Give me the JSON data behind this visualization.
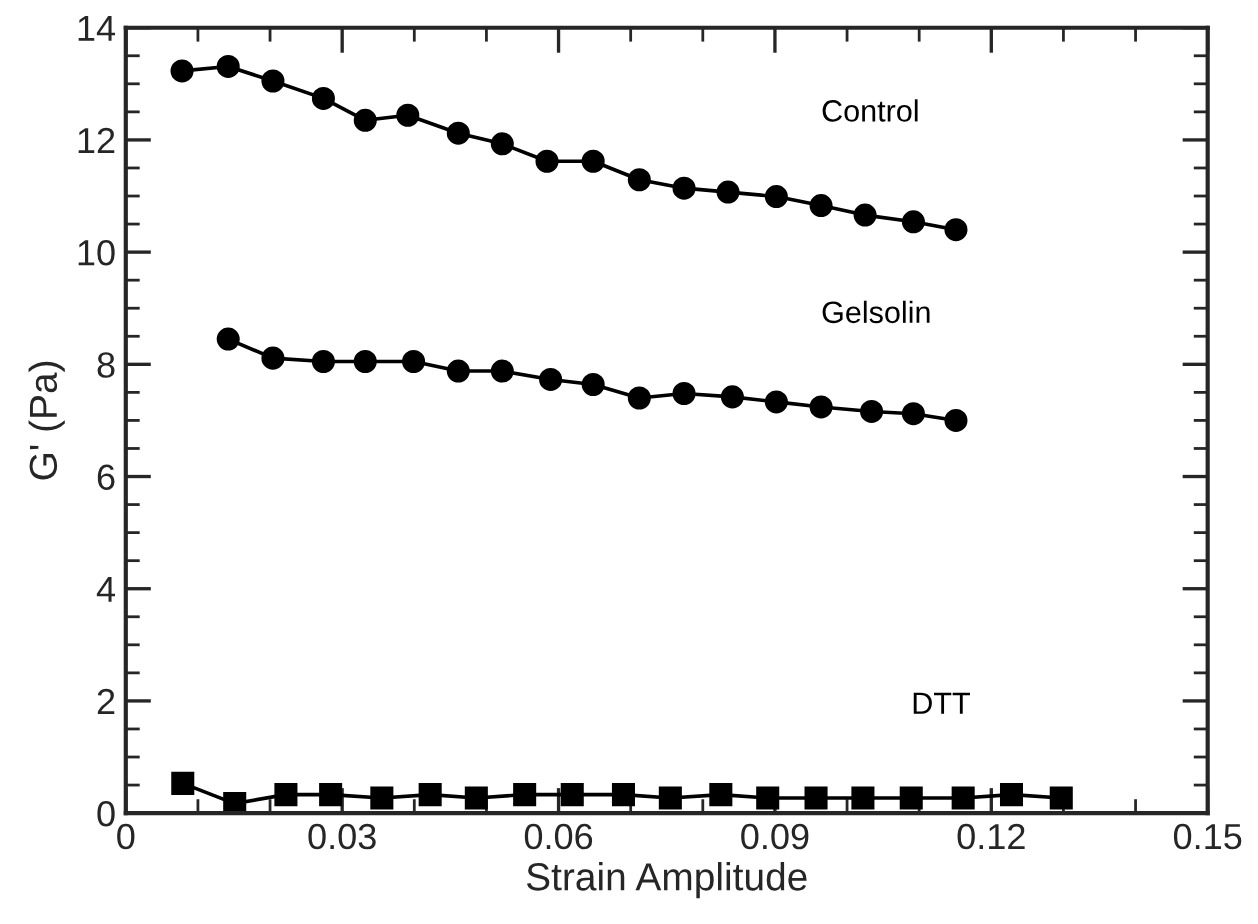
{
  "chart_data": {
    "type": "line",
    "xlabel": "Strain Amplitude",
    "ylabel": "G' (Pa)",
    "xlim": [
      0,
      0.15
    ],
    "xticks": [
      0,
      0.03,
      0.06,
      0.09,
      0.12,
      0.15
    ],
    "ylim": [
      0,
      14
    ],
    "yticks": [
      0,
      2,
      4,
      6,
      8,
      10,
      12,
      14
    ],
    "grid": false,
    "legend": false,
    "line_style": "solid",
    "series": [
      {
        "name": "Control",
        "color": "#000000",
        "marker": "circle",
        "x": [
          0.0078,
          0.0142,
          0.0204,
          0.0274,
          0.0332,
          0.0391,
          0.0461,
          0.0522,
          0.0584,
          0.0648,
          0.0712,
          0.0774,
          0.0835,
          0.0902,
          0.0964,
          0.1025,
          0.1092,
          0.1151
        ],
        "values": [
          13.23,
          13.31,
          13.05,
          12.74,
          12.35,
          12.44,
          12.12,
          11.93,
          11.62,
          11.62,
          11.29,
          11.14,
          11.07,
          10.99,
          10.83,
          10.66,
          10.54,
          10.4
        ]
      },
      {
        "name": "Gelsolin",
        "color": "#000000",
        "marker": "circle",
        "x": [
          0.0142,
          0.0204,
          0.0274,
          0.0332,
          0.0399,
          0.0461,
          0.0522,
          0.0589,
          0.0648,
          0.0712,
          0.0774,
          0.0841,
          0.0902,
          0.0964,
          0.1034,
          0.1092,
          0.1151
        ],
        "values": [
          8.45,
          8.11,
          8.05,
          8.05,
          8.05,
          7.88,
          7.88,
          7.73,
          7.64,
          7.4,
          7.48,
          7.42,
          7.33,
          7.24,
          7.16,
          7.12,
          7.0
        ]
      },
      {
        "name": "DTT",
        "color": "#000000",
        "marker": "square",
        "x": [
          0.0079,
          0.0151,
          0.0222,
          0.0284,
          0.0355,
          0.0422,
          0.0486,
          0.0553,
          0.0619,
          0.069,
          0.0755,
          0.0825,
          0.089,
          0.0957,
          0.1022,
          0.1089,
          0.1161,
          0.1228,
          0.1297
        ],
        "values": [
          0.53,
          0.17,
          0.33,
          0.33,
          0.27,
          0.33,
          0.27,
          0.33,
          0.33,
          0.33,
          0.27,
          0.33,
          0.27,
          0.27,
          0.27,
          0.27,
          0.27,
          0.33,
          0.27
        ]
      }
    ]
  }
}
